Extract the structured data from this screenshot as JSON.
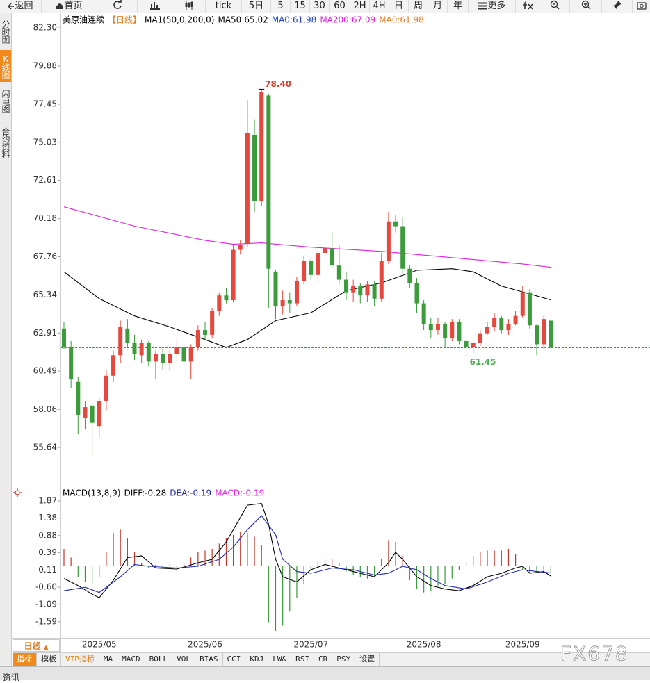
{
  "toolbar": {
    "back": "返回",
    "home": "首页",
    "buttons": [
      "tick",
      "5日",
      "5",
      "15",
      "30",
      "60",
      "2H",
      "4H",
      "日",
      "周",
      "月",
      "年"
    ],
    "more": "更多"
  },
  "side_tabs": [
    "分时图",
    "K线图",
    "闪电图",
    "合约资料"
  ],
  "chart_data": [
    {
      "type": "candlestick",
      "legend": [
        {
          "text": "美原油连续",
          "color": "#000000"
        },
        {
          "text": "【日线】",
          "color": "#e67e22"
        },
        {
          "text": "MA1(50,0,200,0)",
          "color": "#000000"
        },
        {
          "text": "MA50:65.02",
          "color": "#000000"
        },
        {
          "text": "MA0:61.98",
          "color": "#1f3fbf"
        },
        {
          "text": "MA200:67.09",
          "color": "#e020e0"
        },
        {
          "text": "MA0:61.98",
          "color": "#e67e22"
        }
      ],
      "categories": [
        null,
        null,
        null,
        null,
        null,
        "2025/05",
        null,
        null,
        null,
        null,
        null,
        null,
        null,
        null,
        null,
        null,
        null,
        null,
        null,
        null,
        "2025/06",
        null,
        null,
        null,
        null,
        null,
        null,
        null,
        null,
        null,
        null,
        null,
        null,
        null,
        null,
        "2025/07",
        null,
        null,
        null,
        null,
        null,
        null,
        null,
        null,
        null,
        null,
        null,
        null,
        null,
        null,
        null,
        "2025/08",
        null,
        null,
        null,
        null,
        null,
        null,
        null,
        null,
        null,
        null,
        null,
        null,
        null,
        "2025/09",
        null,
        null,
        null,
        null
      ],
      "open": [
        63.2,
        62.0,
        59.8,
        57.5,
        58.3,
        57.0,
        58.6,
        60.2,
        61.5,
        63.2,
        62.3,
        61.5,
        62.3,
        61.1,
        61.6,
        61.0,
        61.6,
        62.0,
        61.1,
        62.0,
        63.1,
        62.8,
        64.3,
        65.3,
        65.0,
        68.2,
        68.6,
        75.5,
        71.3,
        78.0,
        66.8,
        64.6,
        65.0,
        64.8,
        66.2,
        67.5,
        66.6,
        68.0,
        68.3,
        67.2,
        66.3,
        65.5,
        65.9,
        65.3,
        66.0,
        65.1,
        67.5,
        70.0,
        69.7,
        67.0,
        66.1,
        64.8,
        63.5,
        63.1,
        63.5,
        62.6,
        63.6,
        62.4,
        62.0,
        62.3,
        62.9,
        63.3,
        63.9,
        63.1,
        63.5,
        64.0,
        65.5,
        63.4,
        62.2,
        63.7
      ],
      "high": [
        63.6,
        62.4,
        60.1,
        58.6,
        58.4,
        58.8,
        60.6,
        61.8,
        63.7,
        63.8,
        62.8,
        62.5,
        62.4,
        61.8,
        61.9,
        61.8,
        62.6,
        62.4,
        62.2,
        63.4,
        63.6,
        64.5,
        65.5,
        65.8,
        68.5,
        68.8,
        77.7,
        76.5,
        78.4,
        78.1,
        66.9,
        65.6,
        65.5,
        66.5,
        67.8,
        67.7,
        68.3,
        68.8,
        69.3,
        68.5,
        66.8,
        66.3,
        66.1,
        66.2,
        66.2,
        68.0,
        70.6,
        70.4,
        70.3,
        67.2,
        66.4,
        65.0,
        63.9,
        63.9,
        63.6,
        63.8,
        63.8,
        62.6,
        62.4,
        63.1,
        63.6,
        64.2,
        64.0,
        63.8,
        64.3,
        65.9,
        65.7,
        63.5,
        64.0,
        63.8
      ],
      "low": [
        61.9,
        59.4,
        56.5,
        56.8,
        55.1,
        56.3,
        58.0,
        59.8,
        61.0,
        62.0,
        61.2,
        61.0,
        60.8,
        60.0,
        60.6,
        60.5,
        61.1,
        60.8,
        60.0,
        61.8,
        62.5,
        62.6,
        64.0,
        64.8,
        64.9,
        67.9,
        68.4,
        70.6,
        71.0,
        64.5,
        63.8,
        64.1,
        64.2,
        64.6,
        66.0,
        66.3,
        66.1,
        67.6,
        67.0,
        66.0,
        65.0,
        64.9,
        64.8,
        64.9,
        64.6,
        64.9,
        67.3,
        69.3,
        66.7,
        65.8,
        64.2,
        63.1,
        62.6,
        62.8,
        62.0,
        62.4,
        62.2,
        61.45,
        61.6,
        62.1,
        62.8,
        63.0,
        62.9,
        62.8,
        63.4,
        63.9,
        63.2,
        61.5,
        61.9,
        61.9
      ],
      "close": [
        62.0,
        60.0,
        57.7,
        58.2,
        57.2,
        58.6,
        60.2,
        61.5,
        63.3,
        62.3,
        61.6,
        62.3,
        61.1,
        61.6,
        61.0,
        61.6,
        62.0,
        61.1,
        62.0,
        63.1,
        62.8,
        64.3,
        65.3,
        65.0,
        68.2,
        68.5,
        75.6,
        71.3,
        78.2,
        67.0,
        64.6,
        65.0,
        64.8,
        66.2,
        67.5,
        66.6,
        68.0,
        68.3,
        67.2,
        66.3,
        65.5,
        65.9,
        65.3,
        66.0,
        65.1,
        67.5,
        70.0,
        69.7,
        67.0,
        66.1,
        64.8,
        63.5,
        63.1,
        63.5,
        62.6,
        63.6,
        62.4,
        62.0,
        62.3,
        62.9,
        63.3,
        63.9,
        63.1,
        63.5,
        64.0,
        65.5,
        63.4,
        62.2,
        63.8,
        61.98
      ],
      "up_color": "#e5483c",
      "down_color": "#3c9c3c",
      "lines": [
        {
          "color": "#000000",
          "x": [
            0,
            5,
            10,
            15,
            20,
            23,
            26,
            30,
            35,
            40,
            45,
            50,
            55,
            58,
            62,
            66,
            69
          ],
          "values": [
            66.8,
            65.1,
            64.0,
            63.3,
            62.5,
            62.0,
            62.5,
            63.7,
            64.2,
            65.6,
            66.1,
            66.9,
            67.0,
            66.8,
            65.9,
            65.4,
            65.02
          ]
        },
        {
          "color": "#e020e0",
          "x": [
            0,
            10,
            20,
            24,
            28,
            35,
            45,
            55,
            65,
            69
          ],
          "values": [
            70.93,
            69.7,
            68.8,
            68.55,
            68.64,
            68.37,
            68.1,
            67.7,
            67.3,
            67.09
          ]
        }
      ],
      "last_price": 61.98,
      "last_price_color": "#2f7fd0",
      "annotations": [
        {
          "label": "78.40",
          "value": 78.4,
          "x": 28,
          "color": "#d93a30"
        },
        {
          "label": "61.45",
          "value": 61.45,
          "x": 57,
          "color": "#4caf50"
        }
      ],
      "ylim": [
        53.26,
        83.23
      ],
      "yticks": [
        {
          "value": 82.3,
          "label": "82.30"
        },
        79.88,
        77.45,
        75.03,
        72.61,
        70.18,
        67.76,
        65.34,
        62.91,
        60.49,
        58.06,
        55.64
      ]
    },
    {
      "type": "macd",
      "legend": [
        {
          "text": "MACD(13,8,9)",
          "color": "#000000"
        },
        {
          "text": "DIFF:-0.28",
          "color": "#000000"
        },
        {
          "text": "DEA:-0.19",
          "color": "#1f2bb0"
        },
        {
          "text": "MACD:-0.19",
          "color": "#e020e0"
        }
      ],
      "histogram": [
        0.5,
        0.25,
        -0.3,
        -0.45,
        -0.5,
        -0.3,
        0.4,
        0.95,
        1.05,
        0.8,
        0.4,
        0.1,
        -0.05,
        0.05,
        -0.05,
        0.05,
        -0.1,
        0.1,
        0.25,
        0.4,
        0.45,
        0.5,
        0.65,
        0.8,
        0.9,
        1.0,
        0.95,
        0.85,
        0.6,
        -1.6,
        -1.85,
        -1.7,
        -1.3,
        -0.9,
        -0.5,
        -0.1,
        0.15,
        0.2,
        0.2,
        0.1,
        -0.15,
        -0.25,
        -0.3,
        -0.35,
        -0.3,
        0.2,
        0.75,
        0.7,
        0.3,
        -0.4,
        -0.65,
        -0.75,
        -0.7,
        -0.55,
        -0.5,
        -0.35,
        -0.1,
        0.1,
        0.3,
        0.4,
        0.45,
        0.45,
        0.45,
        0.5,
        0.35,
        -0.1,
        -0.2,
        -0.15,
        -0.2,
        -0.19
      ],
      "up_color": "#c0392b",
      "down_color": "#3a9a3a",
      "lines": [
        {
          "color": "#000000",
          "x": [
            0,
            2,
            4,
            5,
            7,
            9,
            11,
            13,
            16,
            19,
            21,
            23,
            25,
            26,
            28,
            29,
            30,
            31,
            33,
            35,
            37,
            39,
            42,
            44,
            46,
            47,
            48,
            50,
            52,
            54,
            56,
            58,
            60,
            62,
            64,
            65,
            66,
            68,
            69
          ],
          "values": [
            -0.35,
            -0.55,
            -0.8,
            -0.9,
            -0.4,
            0.25,
            0.3,
            -0.05,
            -0.08,
            0.1,
            0.2,
            0.7,
            1.4,
            1.75,
            1.8,
            1.2,
            0.2,
            -0.3,
            -0.45,
            -0.1,
            0.05,
            -0.05,
            -0.2,
            -0.3,
            0.1,
            0.4,
            0.2,
            -0.3,
            -0.55,
            -0.65,
            -0.7,
            -0.55,
            -0.3,
            -0.2,
            -0.05,
            0.0,
            -0.2,
            -0.15,
            -0.28
          ]
        },
        {
          "color": "#1f2bb0",
          "x": [
            0,
            3,
            5,
            8,
            10,
            12,
            16,
            19,
            22,
            24,
            26,
            28,
            30,
            31,
            33,
            35,
            38,
            41,
            44,
            46,
            48,
            50,
            52,
            54,
            57,
            60,
            63,
            65,
            67,
            69
          ],
          "values": [
            -0.7,
            -0.6,
            -0.75,
            -0.3,
            0.05,
            0.0,
            -0.05,
            0.0,
            0.2,
            0.55,
            1.05,
            1.45,
            0.9,
            0.2,
            -0.15,
            -0.2,
            -0.05,
            -0.1,
            -0.25,
            -0.2,
            0.0,
            -0.1,
            -0.35,
            -0.55,
            -0.65,
            -0.45,
            -0.2,
            -0.1,
            -0.15,
            -0.19
          ]
        }
      ],
      "ylim": [
        -2.05,
        2.25
      ],
      "yticks": [
        1.87,
        1.38,
        0.88,
        0.39,
        -0.11,
        {
          "value": -0.6,
          "label": "-0.60"
        },
        -1.09,
        -1.59
      ]
    }
  ],
  "period_tab": "日线",
  "indicator_tabs": [
    "指标",
    "模板",
    "VIP指标",
    "MA",
    "MACD",
    "BOLL",
    "VOL",
    "BIAS",
    "CCI",
    "KDJ",
    "LW&",
    "RSI",
    "CR",
    "PSY",
    "设置"
  ],
  "watermark": "FX678",
  "footer_tab": "资讯"
}
